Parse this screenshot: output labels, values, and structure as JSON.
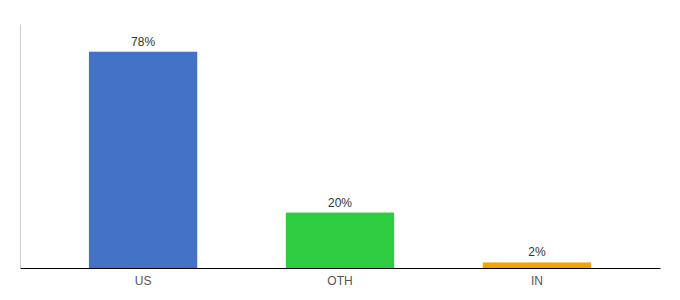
{
  "chart_data": {
    "type": "bar",
    "categories": [
      "US",
      "OTH",
      "IN"
    ],
    "values": [
      78,
      20,
      2
    ],
    "value_labels": [
      "78%",
      "20%",
      "2%"
    ],
    "colors": [
      "#4472c4",
      "#2ecc40",
      "#f0a500"
    ],
    "ylim": [
      0,
      88
    ],
    "data_labels": true,
    "tick_labels": "x",
    "grid": false
  }
}
